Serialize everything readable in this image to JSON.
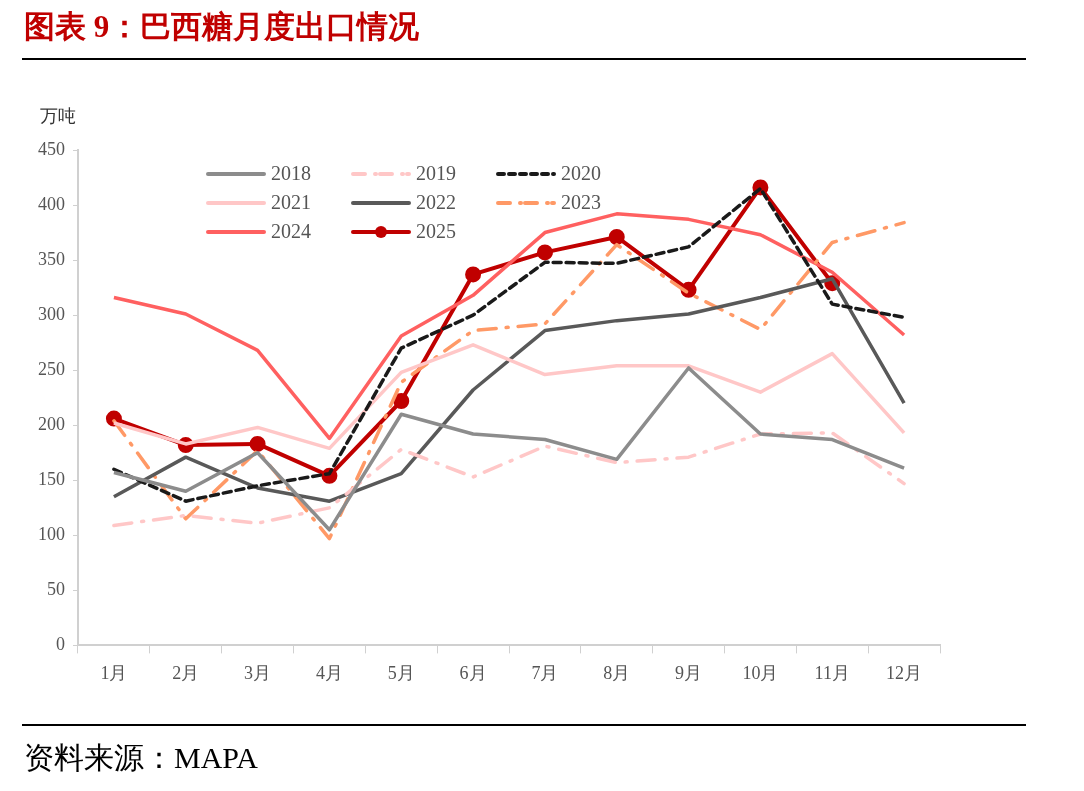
{
  "chart_data": {
    "type": "line",
    "title": "图表 9：巴西糖月度出口情况",
    "ylabel": "万吨",
    "annotations": [
      "资料来源：MAPA"
    ],
    "categories": [
      "1月",
      "2月",
      "3月",
      "4月",
      "5月",
      "6月",
      "7月",
      "8月",
      "9月",
      "10月",
      "11月",
      "12月"
    ],
    "ylim": [
      0,
      450
    ],
    "yticks": [
      0,
      50,
      100,
      150,
      200,
      250,
      300,
      350,
      400,
      450
    ],
    "grid": false,
    "legend": "top left",
    "marker": "none",
    "series": [
      {
        "name": "2018",
        "color": "#8c8c8c",
        "values": [
          157,
          140,
          175,
          105,
          210,
          192,
          187,
          169,
          252,
          192,
          187,
          161
        ]
      },
      {
        "name": "2019",
        "color": "#ffc7c7",
        "line_style": "dashed",
        "values": [
          109,
          118,
          111,
          125,
          178,
          153,
          181,
          166,
          171,
          192,
          193,
          147
        ]
      },
      {
        "name": "2020",
        "color": "#1a1a1a",
        "line_style": "dotted",
        "values": [
          160,
          131,
          145,
          156,
          270,
          300,
          348,
          347,
          362,
          415,
          310,
          298
        ]
      },
      {
        "name": "2021",
        "color": "#ffc7c7",
        "values": [
          202,
          183,
          198,
          179,
          248,
          273,
          246,
          254,
          254,
          230,
          265,
          193
        ]
      },
      {
        "name": "2022",
        "color": "#595959",
        "values": [
          135,
          171,
          143,
          131,
          156,
          232,
          286,
          295,
          301,
          316,
          333,
          220
        ]
      },
      {
        "name": "2023",
        "color": "#ff9966",
        "line_style": "dashed",
        "values": [
          204,
          115,
          177,
          97,
          239,
          286,
          292,
          364,
          320,
          287,
          366,
          384
        ]
      },
      {
        "name": "2024",
        "color": "#ff6060",
        "values": [
          316,
          301,
          268,
          188,
          281,
          318,
          375,
          392,
          387,
          373,
          339,
          282
        ]
      },
      {
        "name": "2025",
        "color": "#c00000",
        "marker": "circle",
        "values": [
          206,
          182,
          183,
          154,
          222,
          337,
          357,
          371,
          323,
          416,
          329,
          null
        ]
      }
    ]
  }
}
